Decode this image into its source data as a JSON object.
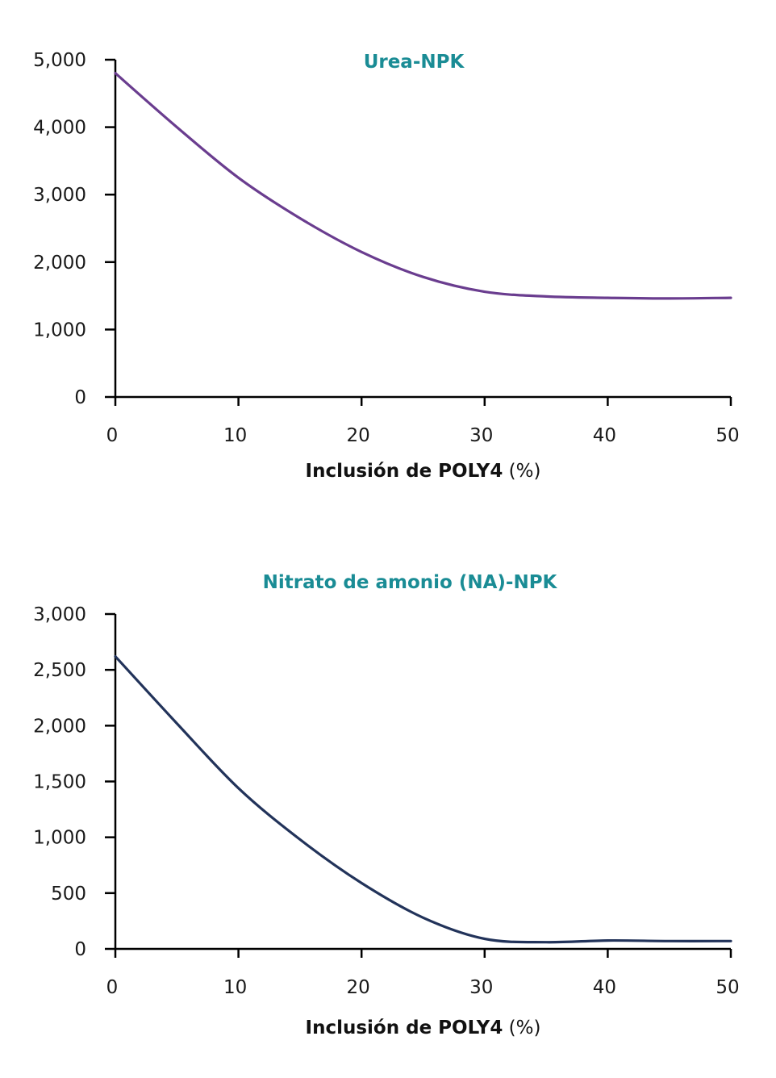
{
  "chart_data": [
    {
      "type": "line",
      "title": "Urea-NPK",
      "xlabel": "Inclusión de POLY4",
      "xlabel_unit": "(%)",
      "ylabel": "",
      "xlim": [
        0,
        50
      ],
      "ylim": [
        0,
        5000
      ],
      "x_ticks": [
        0,
        10,
        20,
        30,
        40,
        50
      ],
      "x_tick_labels": [
        "0",
        "10",
        "20",
        "30",
        "40",
        "50"
      ],
      "y_ticks": [
        0,
        1000,
        2000,
        3000,
        4000,
        5000
      ],
      "y_tick_labels": [
        "0",
        "1,000",
        "2,000",
        "3,000",
        "4,000",
        "5,000"
      ],
      "grid": false,
      "colors": {
        "title": "#1a8c95",
        "series": "#6a3d8f"
      },
      "series": [
        {
          "x": [
            0,
            5,
            10,
            15,
            20,
            25,
            30,
            35,
            40,
            45,
            50
          ],
          "y": [
            4800,
            4000,
            3250,
            2650,
            2150,
            1780,
            1560,
            1490,
            1470,
            1460,
            1470
          ]
        }
      ]
    },
    {
      "type": "line",
      "title": "Nitrato de amonio (NA)-NPK",
      "xlabel": "Inclusión de POLY4",
      "xlabel_unit": "(%)",
      "ylabel": "",
      "xlim": [
        0,
        50
      ],
      "ylim": [
        0,
        3000
      ],
      "x_ticks": [
        0,
        10,
        20,
        30,
        40,
        50
      ],
      "x_tick_labels": [
        "0",
        "10",
        "20",
        "30",
        "40",
        "50"
      ],
      "y_ticks": [
        0,
        500,
        1000,
        1500,
        2000,
        2500,
        3000
      ],
      "y_tick_labels": [
        "0",
        "500",
        "1,000",
        "1,500",
        "2,000",
        "2,500",
        "3,000"
      ],
      "grid": false,
      "colors": {
        "title": "#1a8c95",
        "series": "#22335a"
      },
      "series": [
        {
          "x": [
            0,
            5,
            10,
            15,
            20,
            25,
            30,
            35,
            40,
            45,
            50
          ],
          "y": [
            2620,
            2020,
            1440,
            980,
            590,
            280,
            90,
            60,
            75,
            70,
            70
          ]
        }
      ]
    }
  ]
}
